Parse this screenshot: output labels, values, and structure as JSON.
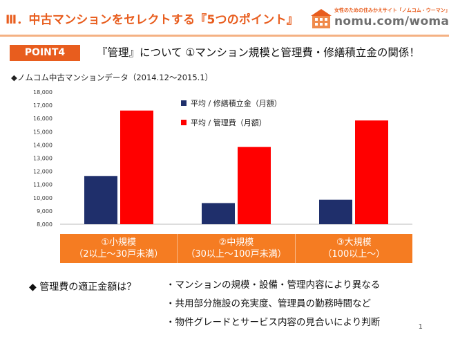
{
  "header": {
    "title": "Ⅲ．中古マンションをセレクトする『5つのポイント』",
    "logo_tagline": "女性のための住みかえサイト「ノムコム・ウーマン」",
    "logo_text": "nomu.com/woman"
  },
  "point": {
    "badge": "POINT4",
    "title": "『管理』について ①マンション規模と管理費・修繕積立金の関係！"
  },
  "subtitle": "◆ノムコム中古マンションデータ（2014.12～2015.1）",
  "chart_data": {
    "type": "bar",
    "categories": [
      "①小規模\n（2以上～30戸未満）",
      "②中規模\n（30以上～100戸未満）",
      "③大規模\n（100以上～）"
    ],
    "series": [
      {
        "name": "平均 / 修繕積立金（月額）",
        "color": "#1f2f6b",
        "values": [
          11650,
          9600,
          9850
        ]
      },
      {
        "name": "平均 / 管理費（月額）",
        "color": "#ff0000",
        "values": [
          16600,
          13850,
          15850
        ]
      }
    ],
    "yticks": [
      "8,000",
      "9,000",
      "10,000",
      "11,000",
      "12,000",
      "13,000",
      "14,000",
      "15,000",
      "16,000",
      "17,000",
      "18,000"
    ],
    "ylim": [
      8000,
      18000
    ],
    "grid": false,
    "legend_position": "top-center"
  },
  "categories_band": [
    {
      "line1": "①小規模",
      "line2": "（2以上～30戸未満）"
    },
    {
      "line1": "②中規模",
      "line2": "（30以上～100戸未満）"
    },
    {
      "line1": "③大規模",
      "line2": "（100以上～）"
    }
  ],
  "bottom": {
    "question": "◆ 管理費の適正金額は？",
    "items": [
      "・マンションの規模・設備・管理内容により異なる",
      "・共用部分施設の充実度、管理員の勤務時間など",
      "・物件グレードとサービス内容の見合いにより判断"
    ]
  },
  "page_number": "1"
}
